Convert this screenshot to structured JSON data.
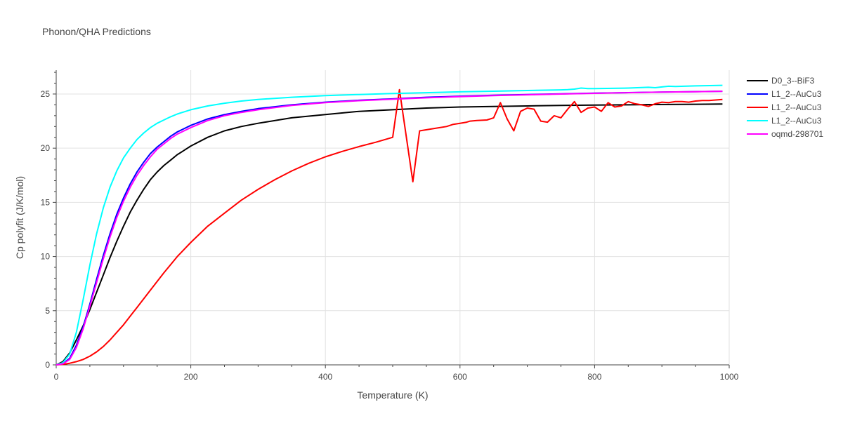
{
  "chart_data": {
    "type": "line",
    "title": "Phonon/QHA Predictions",
    "xlabel": "Temperature (K)",
    "ylabel": "Cp polyfit (J/K/mol)",
    "xlim": [
      0,
      1000
    ],
    "ylim": [
      0,
      27.2
    ],
    "xticks": [
      0,
      200,
      400,
      600,
      800,
      1000
    ],
    "yticks": [
      0,
      5,
      10,
      15,
      20,
      25
    ],
    "grid": true,
    "legend_position": "top-right",
    "series": [
      {
        "name": "D0_3--BiF3",
        "color": "#000000",
        "x": [
          0,
          10,
          20,
          30,
          40,
          50,
          60,
          70,
          80,
          90,
          100,
          110,
          120,
          130,
          140,
          150,
          160,
          170,
          180,
          190,
          200,
          225,
          250,
          275,
          300,
          350,
          400,
          450,
          500,
          550,
          600,
          650,
          700,
          750,
          800,
          850,
          900,
          950,
          990
        ],
        "y": [
          0,
          0.3,
          1.1,
          2.3,
          3.6,
          5.1,
          6.7,
          8.3,
          9.9,
          11.4,
          12.8,
          14.1,
          15.2,
          16.2,
          17.1,
          17.8,
          18.4,
          18.9,
          19.4,
          19.8,
          20.2,
          21.0,
          21.6,
          22.0,
          22.3,
          22.8,
          23.1,
          23.4,
          23.55,
          23.7,
          23.8,
          23.85,
          23.9,
          23.95,
          23.98,
          24.0,
          24.03,
          24.05,
          24.07
        ]
      },
      {
        "name": "L1_2--AuCu3",
        "color": "#0000ff",
        "x": [
          0,
          10,
          20,
          30,
          40,
          50,
          60,
          70,
          80,
          90,
          100,
          110,
          120,
          130,
          140,
          150,
          160,
          170,
          180,
          190,
          200,
          225,
          250,
          275,
          300,
          350,
          400,
          450,
          500,
          550,
          600,
          650,
          700,
          750,
          800,
          850,
          900,
          950,
          990
        ],
        "y": [
          0,
          0.1,
          0.6,
          1.8,
          3.5,
          5.6,
          7.9,
          10.1,
          12.1,
          13.9,
          15.4,
          16.7,
          17.8,
          18.7,
          19.5,
          20.1,
          20.6,
          21.1,
          21.5,
          21.8,
          22.1,
          22.7,
          23.1,
          23.4,
          23.65,
          24.0,
          24.25,
          24.42,
          24.55,
          24.7,
          24.8,
          24.88,
          24.95,
          25.02,
          25.08,
          25.13,
          25.18,
          25.22,
          25.25
        ]
      },
      {
        "name": "L1_2--AuCu3",
        "color": "#ff0000",
        "x": [
          0,
          10,
          20,
          30,
          40,
          50,
          60,
          70,
          80,
          90,
          100,
          110,
          120,
          140,
          160,
          180,
          200,
          225,
          250,
          275,
          300,
          325,
          350,
          375,
          400,
          425,
          450,
          475,
          500,
          510,
          530,
          540,
          560,
          580,
          590,
          600,
          610,
          615,
          625,
          640,
          650,
          660,
          670,
          680,
          690,
          700,
          710,
          720,
          730,
          740,
          750,
          760,
          770,
          780,
          790,
          800,
          810,
          820,
          830,
          840,
          850,
          860,
          870,
          880,
          890,
          900,
          910,
          920,
          930,
          940,
          950,
          960,
          970,
          980,
          990
        ],
        "y": [
          0,
          0.05,
          0.15,
          0.3,
          0.5,
          0.8,
          1.2,
          1.7,
          2.3,
          3.0,
          3.7,
          4.5,
          5.3,
          6.9,
          8.5,
          10.0,
          11.3,
          12.8,
          14.0,
          15.2,
          16.2,
          17.1,
          17.9,
          18.6,
          19.2,
          19.7,
          20.15,
          20.55,
          21.0,
          25.4,
          16.9,
          21.6,
          21.8,
          22.0,
          22.2,
          22.3,
          22.4,
          22.5,
          22.55,
          22.6,
          22.8,
          24.2,
          22.7,
          21.6,
          23.4,
          23.7,
          23.6,
          22.5,
          22.4,
          23.0,
          22.8,
          23.6,
          24.3,
          23.3,
          23.7,
          23.8,
          23.4,
          24.2,
          23.8,
          23.9,
          24.3,
          24.1,
          24.0,
          23.85,
          24.1,
          24.25,
          24.2,
          24.3,
          24.3,
          24.25,
          24.35,
          24.4,
          24.4,
          24.45,
          24.5
        ]
      },
      {
        "name": "L1_2--AuCu3",
        "color": "#00ffff",
        "x": [
          0,
          10,
          20,
          30,
          40,
          50,
          60,
          70,
          80,
          90,
          100,
          110,
          120,
          130,
          140,
          150,
          160,
          170,
          180,
          190,
          200,
          225,
          250,
          275,
          300,
          350,
          400,
          450,
          500,
          550,
          600,
          650,
          700,
          750,
          760,
          770,
          780,
          790,
          800,
          850,
          880,
          890,
          900,
          910,
          920,
          950,
          990
        ],
        "y": [
          0,
          0.2,
          1.0,
          3.0,
          6.0,
          9.2,
          12.1,
          14.5,
          16.4,
          17.9,
          19.1,
          20.0,
          20.8,
          21.4,
          21.9,
          22.3,
          22.6,
          22.9,
          23.15,
          23.35,
          23.55,
          23.9,
          24.15,
          24.35,
          24.5,
          24.7,
          24.85,
          24.95,
          25.05,
          25.12,
          25.2,
          25.26,
          25.32,
          25.38,
          25.4,
          25.45,
          25.55,
          25.5,
          25.5,
          25.55,
          25.62,
          25.58,
          25.65,
          25.72,
          25.7,
          25.75,
          25.8
        ]
      },
      {
        "name": "oqmd-298701",
        "color": "#ff00ff",
        "x": [
          0,
          10,
          20,
          30,
          40,
          50,
          60,
          70,
          80,
          90,
          100,
          110,
          120,
          130,
          140,
          150,
          160,
          170,
          180,
          190,
          200,
          225,
          250,
          275,
          300,
          350,
          400,
          450,
          500,
          550,
          600,
          650,
          700,
          750,
          800,
          850,
          900,
          950,
          990
        ],
        "y": [
          0,
          0.1,
          0.5,
          1.6,
          3.3,
          5.4,
          7.6,
          9.8,
          11.8,
          13.6,
          15.1,
          16.4,
          17.5,
          18.4,
          19.2,
          19.9,
          20.4,
          20.9,
          21.3,
          21.6,
          21.9,
          22.55,
          23.0,
          23.3,
          23.55,
          23.95,
          24.2,
          24.38,
          24.52,
          24.65,
          24.76,
          24.85,
          24.93,
          25.0,
          25.06,
          25.12,
          25.17,
          25.21,
          25.25
        ]
      }
    ]
  }
}
